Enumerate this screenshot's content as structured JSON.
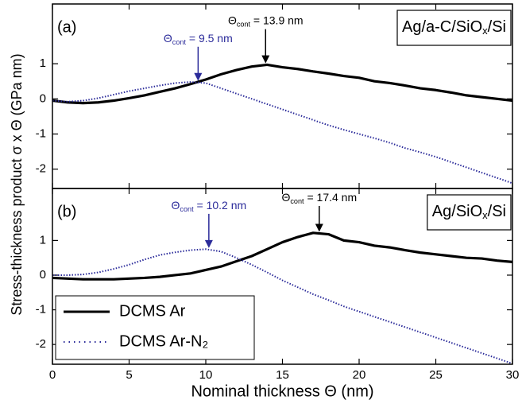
{
  "shared_y_label": "Stress-thickness product σ x Θ (GPa nm)",
  "chart_data": [
    {
      "type": "line",
      "panel_label": "(a)",
      "sample_label": {
        "main": "Ag/a-C/SiO",
        "sub": "x",
        "rest": "/Si"
      },
      "x": [
        0,
        1,
        2,
        3,
        4,
        5,
        6,
        7,
        8,
        9,
        10,
        11,
        12,
        13,
        14,
        15,
        16,
        17,
        18,
        19,
        20,
        21,
        22,
        23,
        24,
        25,
        26,
        27,
        28,
        29,
        30
      ],
      "series": [
        {
          "name": "DCMS Ar",
          "color": "#000000",
          "style": "solid",
          "values": [
            -0.05,
            -0.1,
            -0.12,
            -0.1,
            -0.05,
            0.02,
            0.1,
            0.2,
            0.3,
            0.42,
            0.55,
            0.7,
            0.82,
            0.92,
            0.97,
            0.9,
            0.85,
            0.78,
            0.72,
            0.65,
            0.6,
            0.5,
            0.45,
            0.38,
            0.3,
            0.25,
            0.18,
            0.1,
            0.05,
            0.0,
            -0.05
          ]
        },
        {
          "name": "DCMS Ar-N₂",
          "color": "#2b2b9a",
          "style": "dotted",
          "values": [
            -0.05,
            -0.08,
            -0.05,
            0.02,
            0.12,
            0.22,
            0.3,
            0.38,
            0.45,
            0.48,
            0.45,
            0.3,
            0.15,
            0.0,
            -0.15,
            -0.3,
            -0.45,
            -0.6,
            -0.75,
            -0.88,
            -1.0,
            -1.12,
            -1.25,
            -1.4,
            -1.52,
            -1.65,
            -1.8,
            -1.95,
            -2.1,
            -2.25,
            -2.4
          ]
        }
      ],
      "annotations": [
        {
          "symbol": "Θ",
          "sub": "cont",
          "text": " = 13.9 nm",
          "x": 13.9,
          "color": "#000000"
        },
        {
          "symbol": "Θ",
          "sub": "cont",
          "text": " = 9.5 nm",
          "x": 9.5,
          "color": "#2b2b9a"
        }
      ],
      "xlim": [
        0,
        30
      ],
      "xticks": [
        0,
        5,
        10,
        15,
        20,
        25,
        30
      ],
      "show_xtick_labels": false,
      "ylim": [
        -2.55,
        2.7
      ],
      "yticks": [
        -2,
        -1,
        0,
        1
      ]
    },
    {
      "type": "line",
      "panel_label": "(b)",
      "sample_label": {
        "main": "Ag/SiO",
        "sub": "x",
        "rest": "/Si"
      },
      "x_label": "Nominal thickness Θ (nm)",
      "x": [
        0,
        1,
        2,
        3,
        4,
        5,
        6,
        7,
        8,
        9,
        10,
        11,
        12,
        13,
        14,
        15,
        16,
        17,
        18,
        19,
        20,
        21,
        22,
        23,
        24,
        25,
        26,
        27,
        28,
        29,
        30
      ],
      "series": [
        {
          "name": "DCMS Ar",
          "color": "#000000",
          "style": "solid",
          "values": [
            -0.08,
            -0.1,
            -0.12,
            -0.12,
            -0.12,
            -0.1,
            -0.08,
            -0.05,
            0.0,
            0.05,
            0.15,
            0.25,
            0.4,
            0.55,
            0.75,
            0.95,
            1.1,
            1.22,
            1.18,
            1.0,
            0.95,
            0.85,
            0.8,
            0.72,
            0.65,
            0.6,
            0.55,
            0.5,
            0.48,
            0.42,
            0.38
          ]
        },
        {
          "name": "DCMS Ar-N₂",
          "color": "#2b2b9a",
          "style": "dotted",
          "values": [
            0.0,
            0.0,
            0.02,
            0.08,
            0.18,
            0.3,
            0.45,
            0.58,
            0.66,
            0.72,
            0.75,
            0.68,
            0.5,
            0.3,
            0.08,
            -0.15,
            -0.35,
            -0.55,
            -0.72,
            -0.9,
            -1.05,
            -1.2,
            -1.35,
            -1.5,
            -1.65,
            -1.8,
            -1.95,
            -2.1,
            -2.25,
            -2.4,
            -2.55
          ]
        }
      ],
      "annotations": [
        {
          "symbol": "Θ",
          "sub": "cont",
          "text": " = 17.4 nm",
          "x": 17.4,
          "color": "#000000"
        },
        {
          "symbol": "Θ",
          "sub": "cont",
          "text": " = 10.2 nm",
          "x": 10.2,
          "color": "#2b2b9a"
        }
      ],
      "legend": "lower left",
      "xlim": [
        0,
        30
      ],
      "xticks": [
        0,
        5,
        10,
        15,
        20,
        25,
        30
      ],
      "show_xtick_labels": true,
      "ylim": [
        -2.57,
        2.5
      ],
      "yticks": [
        -2,
        -1,
        0,
        1
      ]
    }
  ]
}
